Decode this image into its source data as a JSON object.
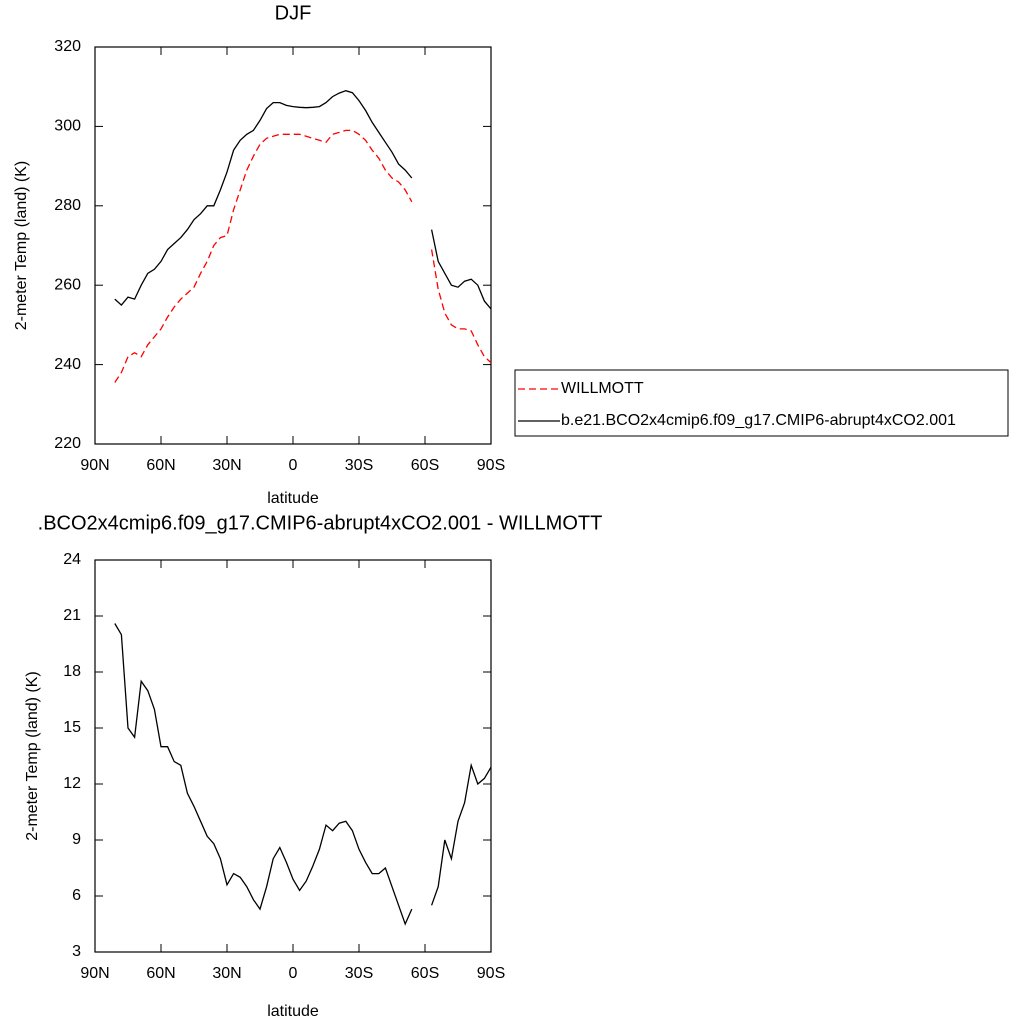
{
  "chart_data": [
    {
      "type": "line",
      "title": "DJF",
      "xlabel": "latitude",
      "ylabel": "2-meter Temp (land) (K)",
      "x": [
        81,
        78,
        75,
        72,
        69,
        66,
        63,
        60,
        57,
        54,
        51,
        48,
        45,
        42,
        39,
        36,
        33,
        30,
        27,
        24,
        21,
        18,
        15,
        12,
        9,
        6,
        3,
        0,
        -3,
        -6,
        -9,
        -12,
        -15,
        -18,
        -21,
        -24,
        -27,
        -30,
        -33,
        -36,
        -39,
        -42,
        -45,
        -48,
        -51,
        -54,
        -57,
        -60,
        -63,
        -66,
        -69,
        -72,
        -75,
        -78,
        -81,
        -84,
        -87,
        -90
      ],
      "series": [
        {
          "name": "WILLMOTT",
          "color": "#ff0000",
          "style": "dashed",
          "values": [
            235.5,
            238,
            242,
            243,
            242,
            245,
            247,
            249,
            252,
            254.5,
            256.5,
            258,
            259.5,
            263,
            266,
            270,
            272,
            272.5,
            279,
            284,
            289,
            292.5,
            295.5,
            297,
            297.5,
            298,
            298,
            298,
            298,
            297.5,
            297,
            296.5,
            296,
            298,
            298.5,
            299,
            299,
            298,
            296.5,
            294,
            292,
            289,
            287,
            286,
            284,
            281,
            null,
            null,
            269,
            259,
            253,
            250,
            249,
            249,
            248.5,
            245,
            242,
            240.5
          ]
        },
        {
          "name": "b.e21.BCO2x4cmip6.f09_g17.CMIP6-abrupt4xCO2.001",
          "color": "#000000",
          "style": "solid",
          "values": [
            256.5,
            255,
            257,
            256.5,
            260,
            263,
            264,
            266,
            269,
            270.5,
            272,
            274,
            276.5,
            278,
            280,
            280,
            284,
            288.5,
            294,
            296.5,
            298,
            299,
            301.5,
            304.5,
            306,
            306,
            305.3,
            305,
            304.8,
            304.7,
            304.8,
            305,
            306,
            307.5,
            308.4,
            309,
            308.5,
            306.5,
            304,
            301,
            298.5,
            296,
            293.5,
            290.5,
            289,
            287,
            null,
            null,
            274,
            266,
            263,
            260,
            259.5,
            261,
            261.5,
            260,
            256,
            254
          ]
        }
      ],
      "xlim": [
        90,
        -90
      ],
      "xticks": [
        {
          "value": 90,
          "label": "90N"
        },
        {
          "value": 60,
          "label": "60N"
        },
        {
          "value": 30,
          "label": "30N"
        },
        0,
        {
          "value": -30,
          "label": "30S"
        },
        {
          "value": -60,
          "label": "60S"
        },
        {
          "value": -90,
          "label": "90S"
        }
      ],
      "ylim": [
        220,
        320
      ],
      "yticks": [
        220,
        240,
        260,
        280,
        300,
        320
      ],
      "legend": "right"
    },
    {
      "type": "line",
      "title": ".BCO2x4cmip6.f09_g17.CMIP6-abrupt4xCO2.001 - WILLMOTT",
      "xlabel": "latitude",
      "ylabel": "2-meter Temp (land) (K)",
      "x": [
        81,
        78,
        75,
        72,
        69,
        66,
        63,
        60,
        57,
        54,
        51,
        48,
        45,
        42,
        39,
        36,
        33,
        30,
        27,
        24,
        21,
        18,
        15,
        12,
        9,
        6,
        3,
        0,
        -3,
        -6,
        -9,
        -12,
        -15,
        -18,
        -21,
        -24,
        -27,
        -30,
        -33,
        -36,
        -39,
        -42,
        -45,
        -48,
        -51,
        -54,
        -57,
        -60,
        -63,
        -66,
        -69,
        -72,
        -75,
        -78,
        -81,
        -84,
        -87,
        -90
      ],
      "values": [
        20.6,
        20,
        15,
        14.5,
        17.5,
        17,
        16,
        14,
        14,
        13.2,
        13,
        11.5,
        10.8,
        10,
        9.2,
        8.8,
        8,
        6.6,
        7.2,
        7,
        6.5,
        5.8,
        5.3,
        6.5,
        8,
        8.6,
        7.8,
        6.9,
        6.3,
        6.8,
        7.6,
        8.5,
        9.8,
        9.5,
        9.9,
        10,
        9.5,
        8.5,
        7.8,
        7.2,
        7.2,
        7.5,
        6.5,
        5.5,
        4.5,
        5.3,
        null,
        null,
        5.5,
        6.5,
        9,
        8,
        10,
        11,
        13,
        12,
        12.3,
        12.9
      ],
      "color": "#000000",
      "xlim": [
        90,
        -90
      ],
      "xticks": [
        {
          "value": 90,
          "label": "90N"
        },
        {
          "value": 60,
          "label": "60N"
        },
        {
          "value": 30,
          "label": "30N"
        },
        0,
        {
          "value": -30,
          "label": "30S"
        },
        {
          "value": -60,
          "label": "60S"
        },
        {
          "value": -90,
          "label": "90S"
        }
      ],
      "ylim": [
        3,
        24
      ],
      "yticks": [
        3,
        6,
        9,
        12,
        15,
        18,
        21,
        24
      ]
    }
  ]
}
